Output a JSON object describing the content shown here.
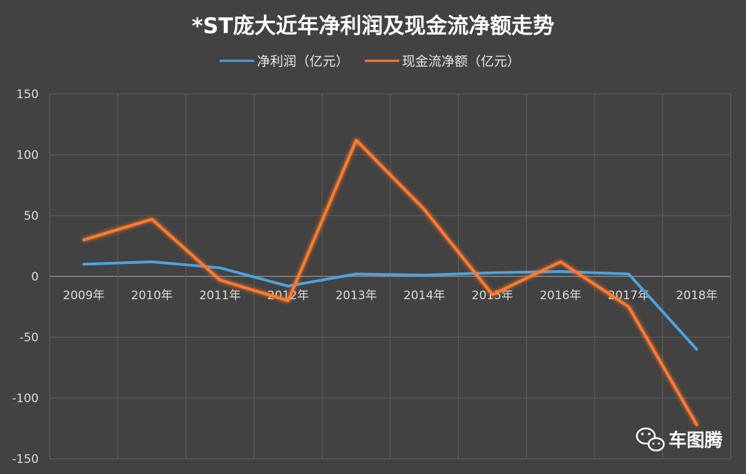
{
  "chart_data": {
    "type": "line",
    "title": "*ST庞大近年净利润及现金流净额走势",
    "categories": [
      "2009年",
      "2010年",
      "2011年",
      "2012年",
      "2013年",
      "2014年",
      "2015年",
      "2016年",
      "2017年",
      "2018年"
    ],
    "series": [
      {
        "name": "净利润（亿元）",
        "color": "#4da3df",
        "values": [
          10,
          12,
          7,
          -8,
          2,
          1,
          3,
          4,
          2,
          -60
        ]
      },
      {
        "name": "现金流净额（亿元）",
        "color": "#ff7a2f",
        "values": [
          30,
          47,
          -3,
          -20,
          112,
          55,
          -15,
          12,
          -25,
          -122
        ]
      }
    ],
    "yticks": [
      "150",
      "100",
      "50",
      "0",
      "-50",
      "-100",
      "-150"
    ],
    "ylim": [
      -150,
      150
    ],
    "grid": true,
    "legend_position": "top-center"
  },
  "watermark": {
    "text": "车图腾",
    "icon": "wechat-icon"
  }
}
